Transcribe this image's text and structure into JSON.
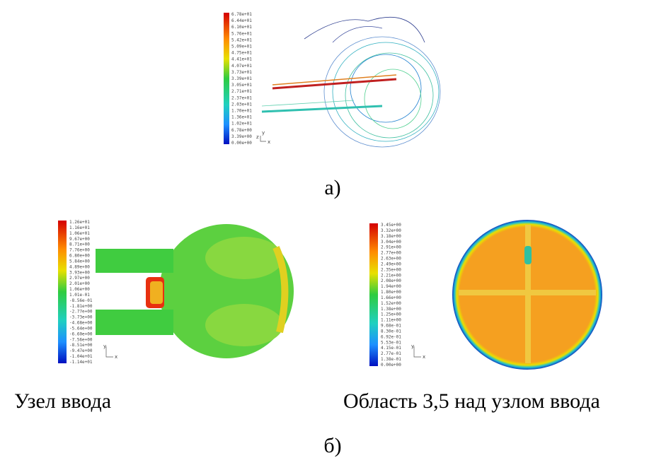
{
  "figure": {
    "top": {
      "colorbar_labels": [
        "6.78e+01",
        "6.44e+01",
        "6.10e+01",
        "5.76e+01",
        "5.42e+01",
        "5.09e+01",
        "4.75e+01",
        "4.41e+01",
        "4.07e+01",
        "3.73e+01",
        "3.39e+01",
        "3.05e+01",
        "2.71e+01",
        "2.37e+01",
        "2.03e+01",
        "1.70e+01",
        "1.36e+01",
        "1.02e+01",
        "6.78e+00",
        "3.39e+00",
        "0.00e+00"
      ],
      "axis_labels": [
        "z",
        "y",
        "x"
      ],
      "caption": "а)"
    },
    "bottom_left": {
      "colorbar_labels": [
        "1.26e+01",
        "1.16e+01",
        "1.06e+01",
        "9.67e+00",
        "8.71e+00",
        "7.76e+00",
        "6.80e+00",
        "5.84e+00",
        "4.89e+00",
        "3.93e+00",
        "2.97e+00",
        "2.01e+00",
        "1.06e+00",
        "1.01e-01",
        "-8.56e-01",
        "-1.81e+00",
        "-2.77e+00",
        "-3.73e+00",
        "-4.68e+00",
        "-5.64e+00",
        "-6.60e+00",
        "-7.56e+00",
        "-8.51e+00",
        "-9.47e+00",
        "-1.04e+01",
        "-1.14e+01"
      ],
      "axis_labels": [
        "y",
        "x"
      ],
      "caption": "Узел ввода"
    },
    "bottom_right": {
      "colorbar_labels": [
        "3.45e+00",
        "3.32e+00",
        "3.18e+00",
        "3.04e+00",
        "2.91e+00",
        "2.77e+00",
        "2.63e+00",
        "2.49e+00",
        "2.35e+00",
        "2.21e+00",
        "2.08e+00",
        "1.94e+00",
        "1.80e+00",
        "1.66e+00",
        "1.52e+00",
        "1.38e+00",
        "1.25e+00",
        "1.11e+00",
        "9.68e-01",
        "8.30e-01",
        "6.92e-01",
        "5.53e-01",
        "4.15e-01",
        "2.77e-01",
        "1.38e-01",
        "0.00e+00"
      ],
      "axis_labels": [
        "y",
        "x"
      ],
      "caption": "Область 3,5 над узлом ввода"
    },
    "caption": "б)"
  }
}
